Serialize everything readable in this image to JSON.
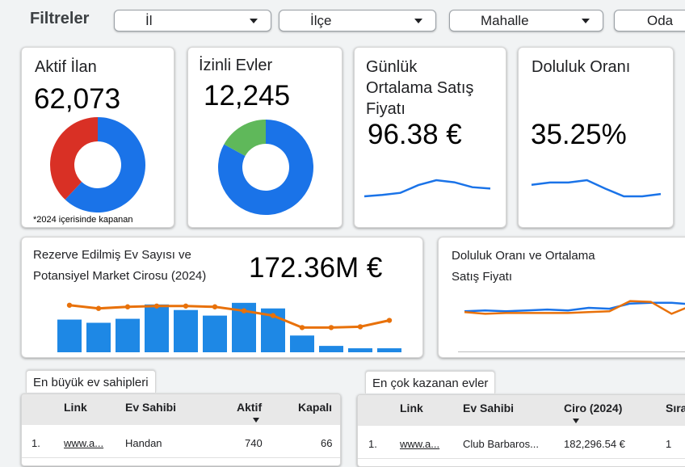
{
  "filters": {
    "title": "Filtreler",
    "items": [
      {
        "label": "İl"
      },
      {
        "label": "İlçe"
      },
      {
        "label": "Mahalle"
      },
      {
        "label": "Oda"
      }
    ]
  },
  "kpis": {
    "active": {
      "title": "Aktif İlan",
      "value": "62,073",
      "note": "*2024 içerisinde kapanan"
    },
    "licensed": {
      "title": "İzinli Evler",
      "value": "12,245"
    },
    "price": {
      "title_lines": [
        "Günlük",
        "Ortalama Satış",
        "Fiyatı"
      ],
      "value": "96.38 €"
    },
    "occupancy": {
      "title": "Doluluk Oranı",
      "value": "35.25%"
    }
  },
  "reserve": {
    "title_lines": [
      "Rezerve Edilmiş Ev Sayısı ve",
      "Potansiyel Market Cirosu (2024)"
    ],
    "value": "172.36M €"
  },
  "occ_price": {
    "title_lines": [
      "Doluluk Oranı ve Ortalama",
      "Satış Fiyatı"
    ]
  },
  "owners_table": {
    "title": "En büyük ev sahipleri",
    "headers": {
      "link": "Link",
      "owner": "Ev Sahibi",
      "active": "Aktif",
      "closed": "Kapalı"
    },
    "rows": [
      {
        "index": "1.",
        "link": "www.a...",
        "owner": "Handan",
        "active": "740",
        "closed": "66"
      }
    ]
  },
  "earners_table": {
    "title": "En çok kazanan evler",
    "headers": {
      "link": "Link",
      "owner": "Ev Sahibi",
      "revenue": "Ciro (2024)",
      "rank": "Sıra"
    },
    "rows": [
      {
        "index": "1.",
        "link": "www.a...",
        "owner": "Club Barbaros...",
        "revenue": "182,296.54 €",
        "rank": "1"
      }
    ]
  },
  "colors": {
    "blue": "#1a73e8",
    "red": "#d93025",
    "green": "#5fb85a",
    "orange": "#e8710a",
    "bar": "#1e88e5"
  },
  "chart_data": [
    {
      "type": "pie",
      "name": "active_donut",
      "values": [
        62,
        38
      ],
      "colors": [
        "#1a73e8",
        "#d93025"
      ]
    },
    {
      "type": "pie",
      "name": "licensed_donut",
      "values": [
        83,
        17
      ],
      "colors": [
        "#1a73e8",
        "#5fb85a"
      ]
    },
    {
      "type": "line",
      "name": "price_sparkline",
      "values": [
        96.0,
        96.2,
        96.5,
        97.6,
        98.3,
        98.0,
        97.3,
        97.1
      ]
    },
    {
      "type": "line",
      "name": "occupancy_sparkline",
      "values": [
        35.6,
        35.9,
        35.9,
        36.2,
        35.1,
        34.1,
        34.1,
        34.4
      ]
    },
    {
      "type": "bar",
      "name": "reserved_combo",
      "series": [
        {
          "type": "bar",
          "values": [
            41,
            37,
            42,
            60,
            53,
            46,
            62,
            55,
            21,
            8,
            5,
            5
          ]
        },
        {
          "type": "line",
          "values": [
            59,
            55,
            57,
            58,
            58,
            57,
            52,
            46,
            31,
            31,
            32,
            40
          ]
        }
      ],
      "ylim": [
        0,
        75
      ]
    },
    {
      "type": "line",
      "name": "occupancy_price_combo",
      "series": [
        {
          "values": [
            48,
            49,
            48,
            49,
            50,
            49,
            52,
            51,
            57,
            58,
            58,
            56
          ]
        },
        {
          "values": [
            47,
            45,
            46,
            46,
            46,
            46,
            47,
            48,
            60,
            59,
            45,
            55
          ]
        }
      ],
      "ylim": [
        0,
        70
      ]
    }
  ]
}
